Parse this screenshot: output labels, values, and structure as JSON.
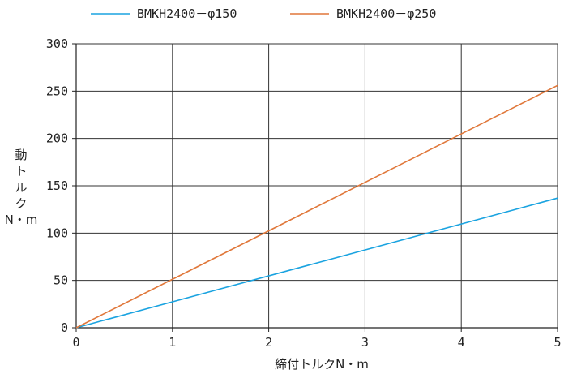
{
  "chart_data": {
    "type": "line",
    "title": "",
    "xlabel": "締付トルクN・m",
    "ylabel_chars": [
      "動",
      "ト",
      "ル",
      "ク",
      "N・m"
    ],
    "x": [
      0,
      5
    ],
    "xlim": [
      0,
      5
    ],
    "ylim": [
      0,
      300
    ],
    "xticks": [
      "0",
      "1",
      "2",
      "3",
      "4",
      "5"
    ],
    "yticks": [
      "0",
      "50",
      "100",
      "150",
      "200",
      "250",
      "300"
    ],
    "grid": true,
    "legend_position": "top",
    "series": [
      {
        "name": "BMKH2400－φ150",
        "color": "#1aa3e0",
        "values": [
          0,
          137
        ]
      },
      {
        "name": "BMKH2400－φ250",
        "color": "#e0773a",
        "values": [
          0,
          256
        ]
      }
    ]
  }
}
